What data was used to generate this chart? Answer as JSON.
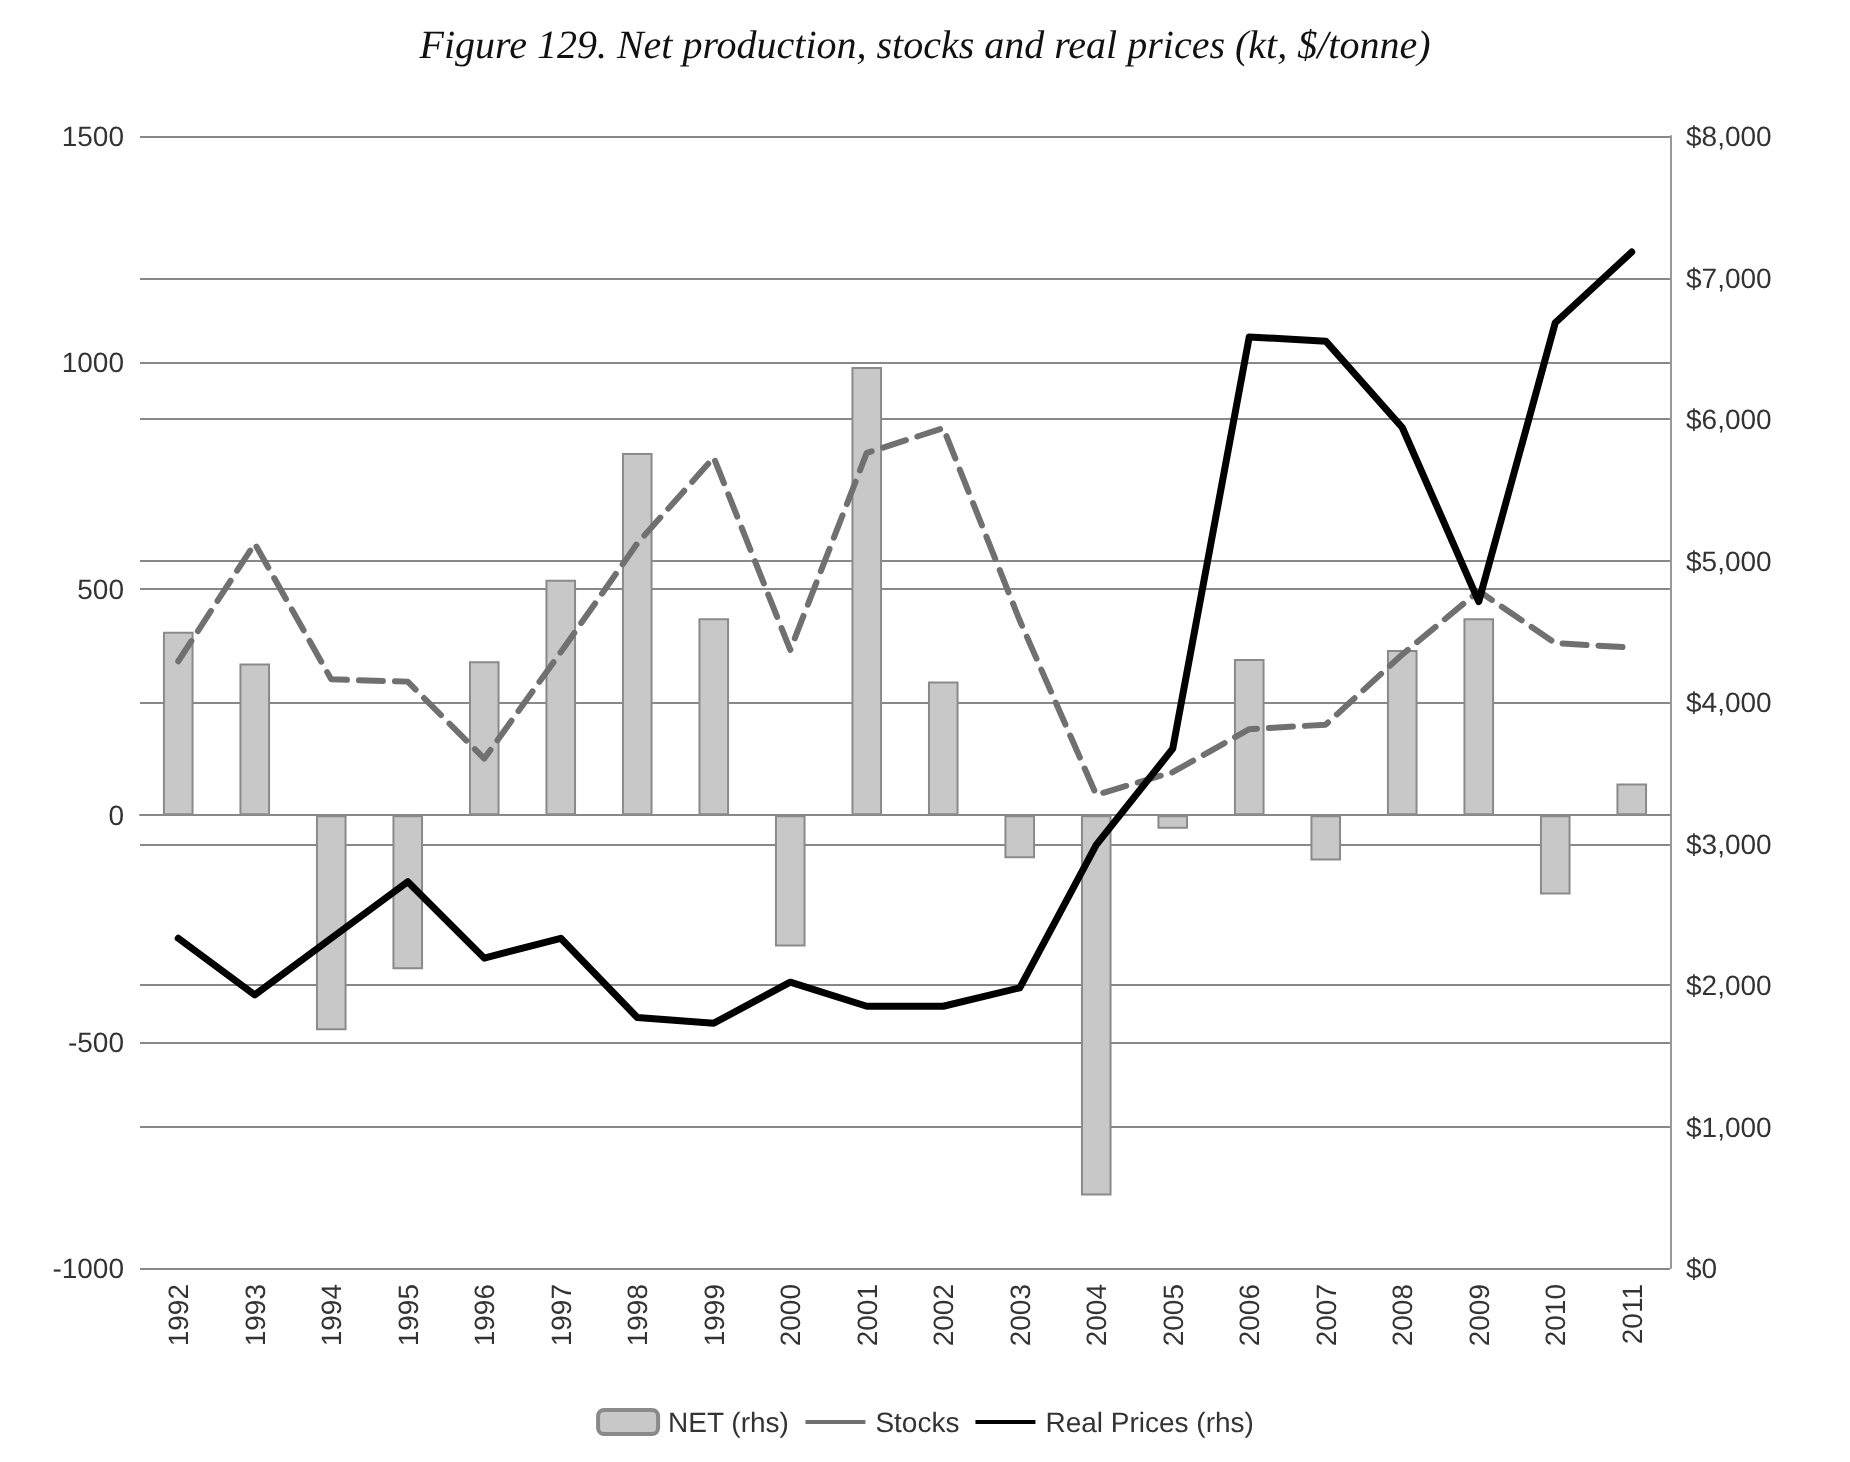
{
  "chart_data": {
    "type": "bar",
    "title": "Figure 129. Net production, stocks and real prices (kt, $/tonne)",
    "categories": [
      "1992",
      "1993",
      "1994",
      "1995",
      "1996",
      "1997",
      "1998",
      "1999",
      "2000",
      "2001",
      "2002",
      "2003",
      "2004",
      "2005",
      "2006",
      "2007",
      "2008",
      "2009",
      "2010",
      "2011"
    ],
    "series": [
      {
        "name": "NET (rhs)",
        "color": "#c8c8c8",
        "values": [
          405,
          335,
          -475,
          -340,
          340,
          520,
          800,
          435,
          -290,
          990,
          295,
          -95,
          -840,
          -30,
          345,
          -100,
          365,
          435,
          -175,
          70
        ]
      },
      {
        "name": "Stocks",
        "type": "line",
        "line_style": "dashed",
        "color": "#707070",
        "values": [
          340,
          600,
          300,
          295,
          125,
          360,
          600,
          790,
          365,
          800,
          855,
          430,
          45,
          95,
          190,
          200,
          355,
          495,
          380,
          370
        ]
      },
      {
        "name": "Real Prices (rhs)",
        "type": "line",
        "line_style": "solid",
        "axis": "y2",
        "color": "#000000",
        "values": [
          2330,
          1930,
          2330,
          2730,
          2190,
          2330,
          1770,
          1730,
          2020,
          1850,
          1850,
          1980,
          2990,
          3670,
          6580,
          6550,
          5940,
          4710,
          6680,
          7180
        ]
      }
    ],
    "ylim": [
      -1000,
      1500
    ],
    "yticks": [
      -1000,
      -500,
      0,
      500,
      1000,
      1500
    ],
    "y2lim": [
      0,
      8000
    ],
    "y2ticks": [
      {
        "value": 0,
        "label": "$0"
      },
      {
        "value": 1000,
        "label": "$1,000"
      },
      {
        "value": 2000,
        "label": "$2,000"
      },
      {
        "value": 3000,
        "label": "$3,000"
      },
      {
        "value": 4000,
        "label": "$4,000"
      },
      {
        "value": 5000,
        "label": "$5,000"
      },
      {
        "value": 6000,
        "label": "$6,000"
      },
      {
        "value": 7000,
        "label": "$7,000"
      },
      {
        "value": 8000,
        "label": "$8,000"
      }
    ],
    "grid": true,
    "legend": "bottom",
    "marker": "none"
  }
}
